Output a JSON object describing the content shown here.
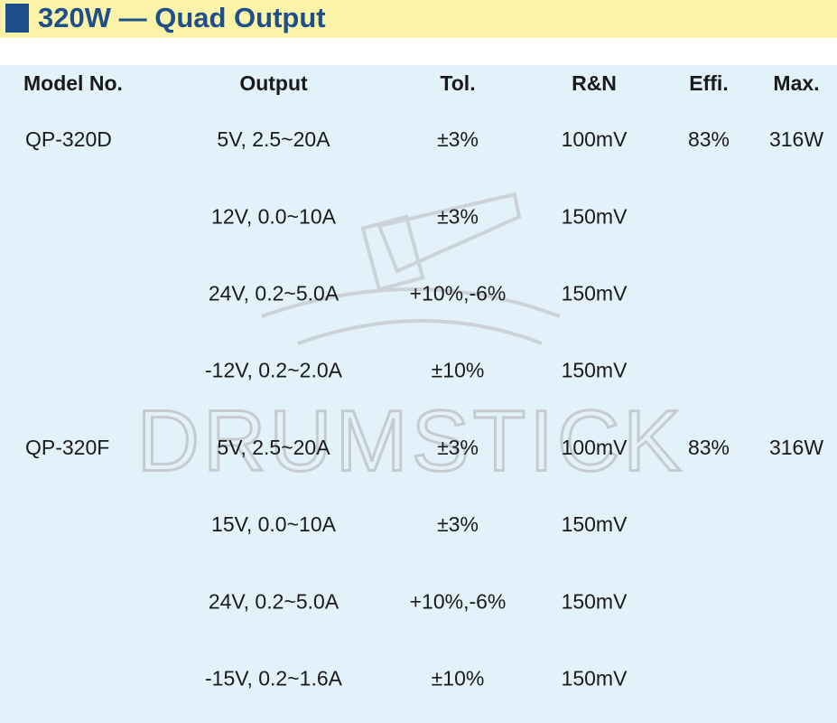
{
  "header": {
    "title": "320W — Quad Output"
  },
  "watermark": "DRUMSTICK",
  "table": {
    "columns": [
      "Model No.",
      "Output",
      "Tol.",
      "R&N",
      "Effi.",
      "Max."
    ],
    "rows": [
      {
        "model": "QP-320D",
        "output": "5V, 2.5~20A",
        "tol": "±3%",
        "rn": "100mV",
        "effi": "83%",
        "max": "316W"
      },
      {
        "output": "12V, 0.0~10A",
        "tol": "±3%",
        "rn": "150mV"
      },
      {
        "output": "24V, 0.2~5.0A",
        "tol": "+10%,-6%",
        "rn": "150mV"
      },
      {
        "output": "-12V, 0.2~2.0A",
        "tol": "±10%",
        "rn": "150mV"
      },
      {
        "model": "QP-320F",
        "output": "5V, 2.5~20A",
        "tol": "±3%",
        "rn": "100mV",
        "effi": "83%",
        "max": "316W"
      },
      {
        "output": "15V, 0.0~10A",
        "tol": "±3%",
        "rn": "150mV"
      },
      {
        "output": "24V, 0.2~5.0A",
        "tol": "+10%,-6%",
        "rn": "150mV"
      },
      {
        "output": "-15V, 0.2~1.6A",
        "tol": "±10%",
        "rn": "150mV"
      }
    ]
  }
}
